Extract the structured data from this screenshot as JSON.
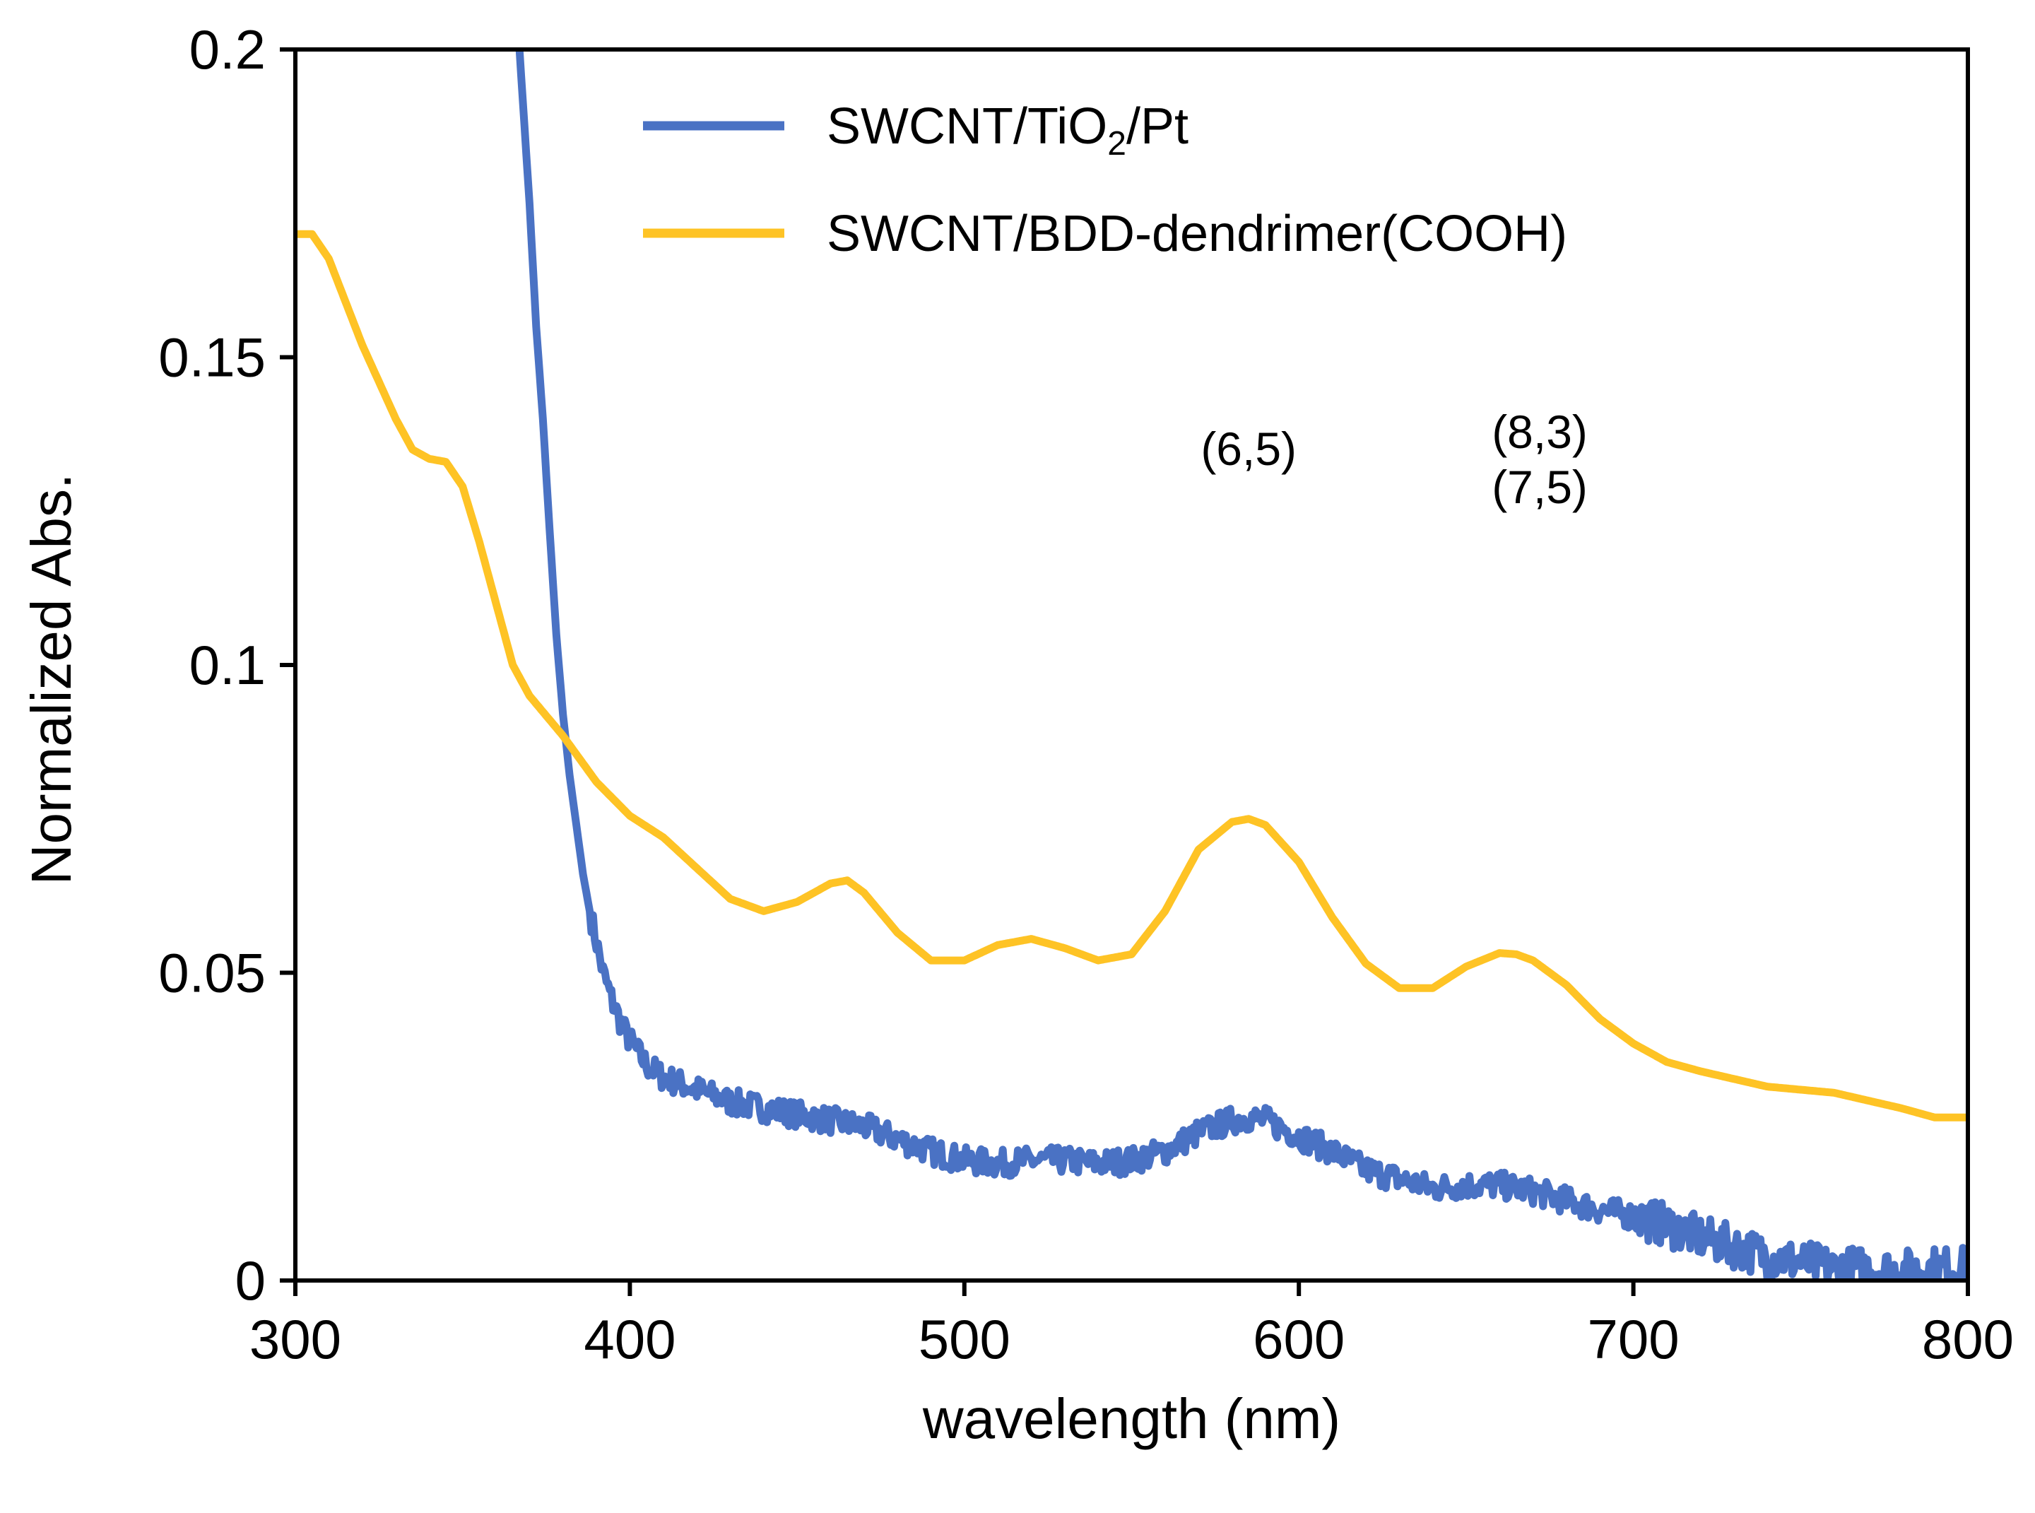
{
  "chart_data": {
    "type": "line",
    "title": "",
    "xlabel": "wavelength (nm)",
    "ylabel": "Normalized Abs.",
    "xlim": [
      300,
      800
    ],
    "ylim": [
      0,
      0.2
    ],
    "grid": false,
    "legend_position": "top-center",
    "x_ticks": [
      300,
      400,
      500,
      600,
      700,
      800
    ],
    "x_tick_labels": [
      "300",
      "400",
      "500",
      "600",
      "700",
      "800"
    ],
    "y_ticks": [
      0,
      0.05,
      0.1,
      0.15,
      0.2
    ],
    "y_tick_labels": [
      "0",
      "0.05",
      "0.1",
      "0.15",
      "0.2"
    ],
    "series": [
      {
        "name": "SWCNT/TiO2/Pt",
        "legend": {
          "prefix": "SWCNT/TiO",
          "subscript": "2",
          "suffix": "/Pt"
        },
        "color": "#4a72c4",
        "noise": 0.0022,
        "x": [
          367,
          370,
          372,
          374,
          376,
          378,
          380,
          382,
          384,
          386,
          388,
          390,
          392,
          395,
          398,
          400,
          405,
          410,
          420,
          430,
          440,
          450,
          460,
          470,
          480,
          490,
          500,
          510,
          520,
          530,
          540,
          550,
          560,
          570,
          580,
          585,
          590,
          600,
          610,
          620,
          630,
          640,
          650,
          660,
          670,
          680,
          690,
          700,
          710,
          720,
          730,
          740,
          750,
          760,
          770,
          780,
          790,
          800
        ],
        "values": [
          0.2,
          0.175,
          0.155,
          0.14,
          0.122,
          0.105,
          0.092,
          0.082,
          0.074,
          0.066,
          0.06,
          0.055,
          0.05,
          0.045,
          0.041,
          0.039,
          0.035,
          0.033,
          0.031,
          0.029,
          0.028,
          0.027,
          0.026,
          0.025,
          0.023,
          0.021,
          0.0195,
          0.019,
          0.0195,
          0.0195,
          0.019,
          0.0195,
          0.021,
          0.024,
          0.026,
          0.0265,
          0.026,
          0.0235,
          0.021,
          0.018,
          0.0165,
          0.015,
          0.0155,
          0.0155,
          0.0145,
          0.013,
          0.0115,
          0.0105,
          0.009,
          0.007,
          0.0055,
          0.004,
          0.003,
          0.002,
          0.002,
          0.0015,
          0.002,
          0.002
        ]
      },
      {
        "name": "SWCNT/BDD-dendrimer(COOH)",
        "legend": {
          "prefix": "SWCNT/BDD-dendrimer(COOH)",
          "subscript": "",
          "suffix": ""
        },
        "color": "#fec325",
        "noise": 0,
        "x": [
          300,
          305,
          310,
          320,
          330,
          335,
          340,
          345,
          350,
          355,
          360,
          365,
          370,
          380,
          390,
          400,
          410,
          420,
          430,
          440,
          450,
          460,
          465,
          470,
          480,
          490,
          500,
          510,
          520,
          530,
          540,
          550,
          560,
          570,
          580,
          585,
          590,
          600,
          610,
          620,
          630,
          640,
          650,
          660,
          665,
          670,
          680,
          690,
          700,
          710,
          720,
          740,
          760,
          780,
          790,
          800
        ],
        "values": [
          0.17,
          0.17,
          0.166,
          0.152,
          0.14,
          0.135,
          0.1335,
          0.133,
          0.129,
          0.12,
          0.11,
          0.1,
          0.095,
          0.0885,
          0.081,
          0.0755,
          0.072,
          0.067,
          0.062,
          0.06,
          0.0615,
          0.0645,
          0.065,
          0.063,
          0.0565,
          0.052,
          0.052,
          0.0545,
          0.0555,
          0.054,
          0.052,
          0.053,
          0.06,
          0.07,
          0.0745,
          0.075,
          0.074,
          0.068,
          0.059,
          0.0515,
          0.0475,
          0.0475,
          0.051,
          0.0532,
          0.053,
          0.052,
          0.048,
          0.0425,
          0.0385,
          0.0355,
          0.034,
          0.0315,
          0.0305,
          0.028,
          0.0265,
          0.0265
        ]
      }
    ],
    "annotations": [
      {
        "lines": [
          "(6,5)"
        ],
        "x": 585,
        "y": 0.135
      },
      {
        "lines": [
          "(8,3)",
          "(7,5)"
        ],
        "x": 672,
        "y": 0.135
      }
    ]
  }
}
